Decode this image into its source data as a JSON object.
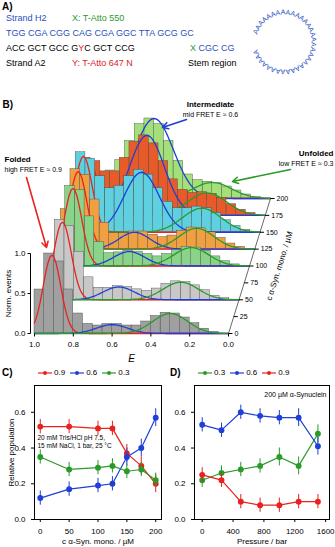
{
  "diagram": {
    "label": "A)",
    "strand_h2_label": "Strand H2",
    "dye_x": "X: T-Atto 550",
    "h2_sequence": "TGG CGA CGG CAG CGA GGC TTA GCG GC",
    "a2_sequence": "ACC GCT GCC GYC GCT CCG",
    "stem_continuation": "X CGC CG",
    "strand_a2_label": "Strand A2",
    "dye_y": "Y: T-Atto 647 N",
    "stem_label": "Stem region",
    "loop_text": "AAAAAAAAAAAAAAAAAAAAAAAAAAAAAAAAAA"
  },
  "chart_data": [
    {
      "type": "histogram3d",
      "label": "B)",
      "x_label": "E",
      "xlim": [
        1,
        0
      ],
      "xticks": [
        {
          "value": 1,
          "label": "1.0"
        },
        {
          "value": 0.8,
          "label": "0.8"
        },
        {
          "value": 0.6,
          "label": "0.6"
        },
        {
          "value": 0.4,
          "label": "0.4"
        },
        {
          "value": 0.2,
          "label": "0.2"
        },
        {
          "value": 0,
          "label": "0.0"
        }
      ],
      "y_label": "Norm. events",
      "ylim": [
        0,
        1
      ],
      "yticks": [
        {
          "value": 0,
          "label": "0.0"
        },
        {
          "value": 0.5,
          "label": "0.5"
        },
        {
          "value": 1,
          "label": "1.0"
        }
      ],
      "z_label": "c α-Syn. mono. / µM",
      "zlim": [
        0,
        200
      ],
      "zticks": [
        0,
        25,
        50,
        75,
        100,
        125,
        150,
        175,
        200
      ],
      "bins": [
        0,
        0.05,
        0.1,
        0.15,
        0.2,
        0.25,
        0.3,
        0.35,
        0.4,
        0.45,
        0.5,
        0.55,
        0.6,
        0.65,
        0.7,
        0.75,
        0.8,
        0.85,
        0.9,
        0.95,
        1
      ],
      "series": [
        {
          "z": 0,
          "color": "#a0a0a0",
          "values": [
            0,
            0.02,
            0.06,
            0.13,
            0.2,
            0.25,
            0.26,
            0.22,
            0.15,
            0.1,
            0.1,
            0.12,
            0.12,
            0.1,
            0.12,
            0.25,
            0.55,
            0.9,
            1.0,
            0.55
          ],
          "fits": [
            {
              "center": 0.91,
              "width": 0.045,
              "amplitude": 0.98,
              "color": "#e8231f"
            },
            {
              "center": 0.6,
              "width": 0.08,
              "amplitude": 0.11,
              "color": "#1f3fd6"
            },
            {
              "center": 0.3,
              "width": 0.09,
              "amplitude": 0.25,
              "color": "#2a9a2a"
            }
          ]
        },
        {
          "z": 50,
          "color": "#c8c8c8",
          "values": [
            0,
            0.02,
            0.05,
            0.12,
            0.18,
            0.22,
            0.23,
            0.2,
            0.14,
            0.11,
            0.13,
            0.16,
            0.17,
            0.15,
            0.15,
            0.28,
            0.6,
            0.92,
            1.0,
            0.5
          ],
          "fits": [
            {
              "center": 0.91,
              "width": 0.045,
              "amplitude": 0.97,
              "color": "#e8231f"
            },
            {
              "center": 0.62,
              "width": 0.08,
              "amplitude": 0.16,
              "color": "#1f3fd6"
            },
            {
              "center": 0.3,
              "width": 0.09,
              "amplitude": 0.22,
              "color": "#2a9a2a"
            }
          ]
        },
        {
          "z": 100,
          "color": "#8ad48a",
          "values": [
            0,
            0.02,
            0.06,
            0.12,
            0.19,
            0.23,
            0.24,
            0.2,
            0.15,
            0.12,
            0.15,
            0.18,
            0.19,
            0.17,
            0.16,
            0.3,
            0.62,
            0.95,
            1.0,
            0.52
          ],
          "fits": [
            {
              "center": 0.91,
              "width": 0.045,
              "amplitude": 0.97,
              "color": "#e8231f"
            },
            {
              "center": 0.62,
              "width": 0.08,
              "amplitude": 0.18,
              "color": "#1f3fd6"
            },
            {
              "center": 0.3,
              "width": 0.09,
              "amplitude": 0.23,
              "color": "#2a9a2a"
            }
          ]
        },
        {
          "z": 125,
          "color": "#f0a040",
          "values": [
            0,
            0.03,
            0.07,
            0.14,
            0.21,
            0.26,
            0.27,
            0.23,
            0.17,
            0.15,
            0.18,
            0.22,
            0.22,
            0.2,
            0.2,
            0.33,
            0.62,
            0.93,
            1.0,
            0.5
          ],
          "fits": [
            {
              "center": 0.91,
              "width": 0.045,
              "amplitude": 0.97,
              "color": "#e8231f"
            },
            {
              "center": 0.62,
              "width": 0.08,
              "amplitude": 0.21,
              "color": "#1f3fd6"
            },
            {
              "center": 0.3,
              "width": 0.09,
              "amplitude": 0.26,
              "color": "#2a9a2a"
            }
          ]
        },
        {
          "z": 150,
          "color": "#5fd0e0",
          "values": [
            0,
            0.03,
            0.08,
            0.15,
            0.24,
            0.3,
            0.32,
            0.3,
            0.3,
            0.38,
            0.55,
            0.72,
            0.78,
            0.7,
            0.58,
            0.55,
            0.7,
            0.92,
            1.0,
            0.55
          ],
          "fits": [
            {
              "center": 0.91,
              "width": 0.045,
              "amplitude": 0.95,
              "color": "#e8231f"
            },
            {
              "center": 0.61,
              "width": 0.09,
              "amplitude": 0.75,
              "color": "#1f3fd6"
            },
            {
              "center": 0.3,
              "width": 0.1,
              "amplitude": 0.3,
              "color": "#2a9a2a"
            }
          ]
        },
        {
          "z": 175,
          "color": "#e85a2a",
          "values": [
            0,
            0.03,
            0.07,
            0.14,
            0.22,
            0.27,
            0.29,
            0.28,
            0.32,
            0.45,
            0.68,
            0.9,
            1.0,
            0.92,
            0.72,
            0.55,
            0.55,
            0.68,
            0.72,
            0.4
          ],
          "fits": [
            {
              "center": 0.91,
              "width": 0.045,
              "amplitude": 0.7,
              "color": "#e8231f"
            },
            {
              "center": 0.61,
              "width": 0.09,
              "amplitude": 1.0,
              "color": "#1f3fd6"
            },
            {
              "center": 0.3,
              "width": 0.1,
              "amplitude": 0.28,
              "color": "#2a9a2a"
            }
          ]
        },
        {
          "z": 200,
          "color": "#a4e07a",
          "values": [
            0,
            0.02,
            0.05,
            0.1,
            0.15,
            0.19,
            0.21,
            0.23,
            0.3,
            0.47,
            0.72,
            0.93,
            1.0,
            0.93,
            0.72,
            0.48,
            0.35,
            0.33,
            0.3,
            0.17
          ],
          "fits": [
            {
              "center": 0.91,
              "width": 0.05,
              "amplitude": 0.3,
              "color": "#e8231f"
            },
            {
              "center": 0.6,
              "width": 0.1,
              "amplitude": 1.0,
              "color": "#1f3fd6"
            },
            {
              "center": 0.3,
              "width": 0.1,
              "amplitude": 0.2,
              "color": "#2a9a2a"
            }
          ]
        }
      ],
      "annotations": [
        {
          "text": "Folded",
          "subtext": "high FRET E ≈ 0.9",
          "color": "#e8231f"
        },
        {
          "text": "Intermediate",
          "subtext": "mid FRET E ≈ 0.6",
          "color": "#1f3fd6"
        },
        {
          "text": "Unfolded",
          "subtext": "low FRET E ≈ 0.3",
          "color": "#2a9a2a"
        }
      ]
    },
    {
      "type": "line",
      "label": "C)",
      "x_label": "c α-Syn. mono. / µM",
      "y_label": "Relative population",
      "x": [
        0,
        50,
        100,
        125,
        150,
        175,
        200
      ],
      "xlim": [
        -10,
        210
      ],
      "xticks": [
        0,
        50,
        100,
        150,
        200
      ],
      "ylim": [
        0,
        0.75
      ],
      "yticks": [
        {
          "value": 0,
          "label": "0.0"
        },
        {
          "value": 0.2,
          "label": "0.2"
        },
        {
          "value": 0.4,
          "label": "0.4"
        },
        {
          "value": 0.6,
          "label": "0.6"
        }
      ],
      "legend": "top",
      "marker": "circle",
      "annotation": [
        "20 mM Tris/HCl pH 7.5,",
        "15 mM NaCl, 1 bar, 25 °C"
      ],
      "series": [
        {
          "name": "0.9",
          "color": "#e8231f",
          "values": [
            0.52,
            0.52,
            0.51,
            0.51,
            0.37,
            0.3,
            0.2
          ],
          "errors": [
            0.04,
            0.04,
            0.04,
            0.04,
            0.05,
            0.05,
            0.05
          ]
        },
        {
          "name": "0.6",
          "color": "#1f3fd6",
          "values": [
            0.12,
            0.17,
            0.19,
            0.2,
            0.35,
            0.4,
            0.57
          ],
          "errors": [
            0.04,
            0.04,
            0.04,
            0.04,
            0.05,
            0.05,
            0.05
          ]
        },
        {
          "name": "0.3",
          "color": "#2a9a2a",
          "values": [
            0.35,
            0.28,
            0.29,
            0.3,
            0.27,
            0.28,
            0.22
          ],
          "errors": [
            0.04,
            0.04,
            0.04,
            0.04,
            0.04,
            0.04,
            0.04
          ]
        }
      ]
    },
    {
      "type": "line",
      "label": "D)",
      "x_label": "Pressure / bar",
      "x": [
        0,
        250,
        500,
        750,
        1000,
        1250,
        1500
      ],
      "xlim": [
        -100,
        1650
      ],
      "xticks": [
        0,
        400,
        800,
        1200,
        1600
      ],
      "ylim": [
        0,
        0.75
      ],
      "yticks": [
        {
          "value": 0,
          "label": "0.0"
        },
        {
          "value": 0.2,
          "label": "0.2"
        },
        {
          "value": 0.4,
          "label": "0.4"
        },
        {
          "value": 0.6,
          "label": "0.6"
        }
      ],
      "legend": "top",
      "marker": "circle",
      "annotation": [
        "200 µM α-Synuclein"
      ],
      "series": [
        {
          "name": "0.3",
          "color": "#2a9a2a",
          "values": [
            0.22,
            0.26,
            0.28,
            0.3,
            0.35,
            0.3,
            0.48
          ],
          "errors": [
            0.04,
            0.04,
            0.04,
            0.04,
            0.05,
            0.05,
            0.05
          ]
        },
        {
          "name": "0.6",
          "color": "#1f3fd6",
          "values": [
            0.53,
            0.5,
            0.6,
            0.58,
            0.57,
            0.57,
            0.41
          ],
          "errors": [
            0.04,
            0.04,
            0.04,
            0.04,
            0.04,
            0.05,
            0.05
          ]
        },
        {
          "name": "0.9",
          "color": "#e8231f",
          "values": [
            0.25,
            0.22,
            0.1,
            0.08,
            0.08,
            0.1,
            0.1
          ],
          "errors": [
            0.04,
            0.04,
            0.04,
            0.04,
            0.04,
            0.04,
            0.04
          ]
        }
      ]
    }
  ]
}
